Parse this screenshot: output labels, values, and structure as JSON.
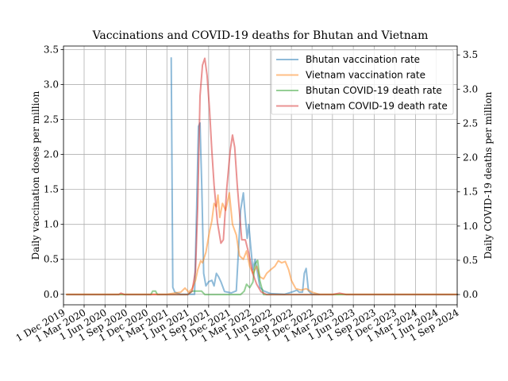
{
  "chart_data": {
    "type": "line",
    "title": "Vaccinations and COVID-19 deaths for Bhutan and Vietnam",
    "ylabel_left": "Daily vaccination doses per million",
    "ylabel_right": "Daily COVID-19 deaths per million",
    "xlabel": "",
    "xlim": [
      "2019-12-01",
      "2024-09-01"
    ],
    "ylim_left": [
      -0.15,
      3.55
    ],
    "ylim_right": [
      -0.15,
      3.63
    ],
    "grid": true,
    "legend_position": "top-right",
    "x_ticks": [
      "2019-12-01",
      "2020-03-01",
      "2020-06-01",
      "2020-09-01",
      "2020-12-01",
      "2021-03-01",
      "2021-06-01",
      "2021-09-01",
      "2021-12-01",
      "2022-03-01",
      "2022-06-01",
      "2022-09-01",
      "2022-12-01",
      "2023-03-01",
      "2023-06-01",
      "2023-09-01",
      "2023-12-01",
      "2024-03-01",
      "2024-06-01",
      "2024-09-01"
    ],
    "x_tick_labels": [
      "1 Dec 2019",
      "1 Mar 2020",
      "1 Jun 2020",
      "1 Sep 2020",
      "1 Dec 2020",
      "1 Mar 2021",
      "1 Jun 2021",
      "1 Sep 2021",
      "1 Dec 2021",
      "1 Mar 2022",
      "1 Jun 2022",
      "1 Sep 2022",
      "1 Dec 2022",
      "1 Mar 2023",
      "1 Jun 2023",
      "1 Sep 2023",
      "1 Dec 2023",
      "1 Mar 2024",
      "1 Jun 2024",
      "1 Sep 2024"
    ],
    "y_ticks_left": [
      0.0,
      0.5,
      1.0,
      1.5,
      2.0,
      2.5,
      3.0,
      3.5
    ],
    "y_tick_labels_left": [
      "0.0",
      "0.5",
      "1.0",
      "1.5",
      "2.0",
      "2.5",
      "3.0",
      "3.5"
    ],
    "y_ticks_right": [
      0.0,
      0.5,
      1.0,
      1.5,
      2.0,
      2.5,
      3.0,
      3.5
    ],
    "y_tick_labels_right": [
      "0.0",
      "0.5",
      "1.0",
      "1.5",
      "2.0",
      "2.5",
      "3.0",
      "3.5"
    ],
    "series": [
      {
        "name": "Bhutan vaccination rate",
        "axis": "left",
        "color": "#1f77b4",
        "points": [
          [
            "2021-03-20",
            3.38
          ],
          [
            "2021-03-27",
            0.1
          ],
          [
            "2021-04-05",
            0.03
          ],
          [
            "2021-05-01",
            0.0
          ],
          [
            "2021-07-01",
            0.0
          ],
          [
            "2021-07-10",
            1.2
          ],
          [
            "2021-07-18",
            2.4
          ],
          [
            "2021-07-25",
            2.45
          ],
          [
            "2021-08-02",
            1.5
          ],
          [
            "2021-08-10",
            0.3
          ],
          [
            "2021-08-20",
            0.12
          ],
          [
            "2021-09-01",
            0.18
          ],
          [
            "2021-09-15",
            0.2
          ],
          [
            "2021-09-25",
            0.12
          ],
          [
            "2021-10-05",
            0.3
          ],
          [
            "2021-10-15",
            0.25
          ],
          [
            "2021-10-25",
            0.18
          ],
          [
            "2021-11-10",
            0.04
          ],
          [
            "2021-12-10",
            0.02
          ],
          [
            "2022-01-01",
            0.05
          ],
          [
            "2022-01-10",
            0.6
          ],
          [
            "2022-01-20",
            1.2
          ],
          [
            "2022-02-01",
            1.45
          ],
          [
            "2022-02-10",
            1.1
          ],
          [
            "2022-02-18",
            0.8
          ],
          [
            "2022-02-25",
            1.0
          ],
          [
            "2022-03-05",
            0.7
          ],
          [
            "2022-03-15",
            0.35
          ],
          [
            "2022-03-25",
            0.5
          ],
          [
            "2022-04-05",
            0.3
          ],
          [
            "2022-04-15",
            0.1
          ],
          [
            "2022-05-01",
            0.05
          ],
          [
            "2022-06-01",
            0.01
          ],
          [
            "2022-08-01",
            0.0
          ],
          [
            "2022-09-10",
            0.04
          ],
          [
            "2022-09-25",
            0.06
          ],
          [
            "2022-10-05",
            0.03
          ],
          [
            "2022-10-20",
            0.03
          ],
          [
            "2022-10-28",
            0.3
          ],
          [
            "2022-11-05",
            0.37
          ],
          [
            "2022-11-15",
            0.05
          ],
          [
            "2022-12-01",
            0.0
          ],
          [
            "2023-01-01",
            0.0
          ]
        ]
      },
      {
        "name": "Vietnam vaccination rate",
        "axis": "left",
        "color": "#ff7f0e",
        "points": [
          [
            "2019-12-15",
            0.0
          ],
          [
            "2021-03-01",
            0.0
          ],
          [
            "2021-05-01",
            0.03
          ],
          [
            "2021-05-20",
            0.09
          ],
          [
            "2021-06-05",
            0.03
          ],
          [
            "2021-06-20",
            0.08
          ],
          [
            "2021-07-05",
            0.2
          ],
          [
            "2021-07-15",
            0.35
          ],
          [
            "2021-07-28",
            0.48
          ],
          [
            "2021-08-05",
            0.45
          ],
          [
            "2021-08-20",
            0.6
          ],
          [
            "2021-09-05",
            0.9
          ],
          [
            "2021-09-15",
            1.05
          ],
          [
            "2021-09-25",
            1.3
          ],
          [
            "2021-10-05",
            1.25
          ],
          [
            "2021-10-12",
            1.42
          ],
          [
            "2021-10-20",
            1.1
          ],
          [
            "2021-11-01",
            1.3
          ],
          [
            "2021-11-15",
            1.2
          ],
          [
            "2021-12-01",
            1.45
          ],
          [
            "2021-12-15",
            1.0
          ],
          [
            "2022-01-01",
            0.85
          ],
          [
            "2022-01-15",
            0.55
          ],
          [
            "2022-02-01",
            0.5
          ],
          [
            "2022-02-15",
            0.62
          ],
          [
            "2022-03-01",
            0.4
          ],
          [
            "2022-03-15",
            0.3
          ],
          [
            "2022-04-01",
            0.4
          ],
          [
            "2022-04-15",
            0.25
          ],
          [
            "2022-05-01",
            0.22
          ],
          [
            "2022-05-15",
            0.3
          ],
          [
            "2022-06-01",
            0.35
          ],
          [
            "2022-06-20",
            0.4
          ],
          [
            "2022-07-05",
            0.48
          ],
          [
            "2022-07-20",
            0.45
          ],
          [
            "2022-08-05",
            0.47
          ],
          [
            "2022-08-20",
            0.35
          ],
          [
            "2022-09-01",
            0.2
          ],
          [
            "2022-09-20",
            0.08
          ],
          [
            "2022-10-15",
            0.06
          ],
          [
            "2022-11-05",
            0.08
          ],
          [
            "2022-12-01",
            0.03
          ],
          [
            "2023-01-01",
            0.0
          ],
          [
            "2024-09-01",
            0.0
          ]
        ]
      },
      {
        "name": "Bhutan COVID-19 death rate",
        "axis": "right",
        "color": "#2ca02c",
        "points": [
          [
            "2019-12-15",
            0.0
          ],
          [
            "2020-12-20",
            0.0
          ],
          [
            "2020-12-28",
            0.05
          ],
          [
            "2021-01-10",
            0.05
          ],
          [
            "2021-01-18",
            0.0
          ],
          [
            "2021-06-01",
            0.0
          ],
          [
            "2021-06-20",
            0.05
          ],
          [
            "2021-08-01",
            0.05
          ],
          [
            "2021-08-15",
            0.0
          ],
          [
            "2022-01-20",
            0.0
          ],
          [
            "2022-02-05",
            0.05
          ],
          [
            "2022-02-15",
            0.15
          ],
          [
            "2022-03-01",
            0.1
          ],
          [
            "2022-03-15",
            0.18
          ],
          [
            "2022-03-25",
            0.45
          ],
          [
            "2022-04-05",
            0.5
          ],
          [
            "2022-04-15",
            0.2
          ],
          [
            "2022-05-01",
            0.0
          ],
          [
            "2024-09-01",
            0.0
          ]
        ]
      },
      {
        "name": "Vietnam COVID-19 death rate",
        "axis": "right",
        "color": "#d62728",
        "points": [
          [
            "2019-12-15",
            0.0
          ],
          [
            "2020-08-01",
            0.0
          ],
          [
            "2020-08-10",
            0.02
          ],
          [
            "2020-08-25",
            0.0
          ],
          [
            "2021-06-01",
            0.0
          ],
          [
            "2021-06-20",
            0.05
          ],
          [
            "2021-07-05",
            0.35
          ],
          [
            "2021-07-15",
            1.3
          ],
          [
            "2021-07-25",
            2.9
          ],
          [
            "2021-08-05",
            3.35
          ],
          [
            "2021-08-15",
            3.45
          ],
          [
            "2021-08-25",
            3.2
          ],
          [
            "2021-09-05",
            2.7
          ],
          [
            "2021-09-15",
            2.1
          ],
          [
            "2021-09-25",
            1.6
          ],
          [
            "2021-10-10",
            1.05
          ],
          [
            "2021-10-25",
            0.75
          ],
          [
            "2021-11-05",
            0.8
          ],
          [
            "2021-11-20",
            1.55
          ],
          [
            "2021-12-05",
            2.1
          ],
          [
            "2021-12-15",
            2.33
          ],
          [
            "2021-12-25",
            2.15
          ],
          [
            "2022-01-05",
            1.6
          ],
          [
            "2022-01-15",
            1.2
          ],
          [
            "2022-01-25",
            0.8
          ],
          [
            "2022-02-10",
            0.8
          ],
          [
            "2022-02-25",
            0.6
          ],
          [
            "2022-03-15",
            0.3
          ],
          [
            "2022-04-01",
            0.15
          ],
          [
            "2022-04-20",
            0.04
          ],
          [
            "2022-05-15",
            0.0
          ],
          [
            "2023-03-01",
            0.0
          ],
          [
            "2023-04-01",
            0.02
          ],
          [
            "2023-05-01",
            0.0
          ],
          [
            "2024-09-01",
            0.0
          ]
        ]
      }
    ]
  }
}
